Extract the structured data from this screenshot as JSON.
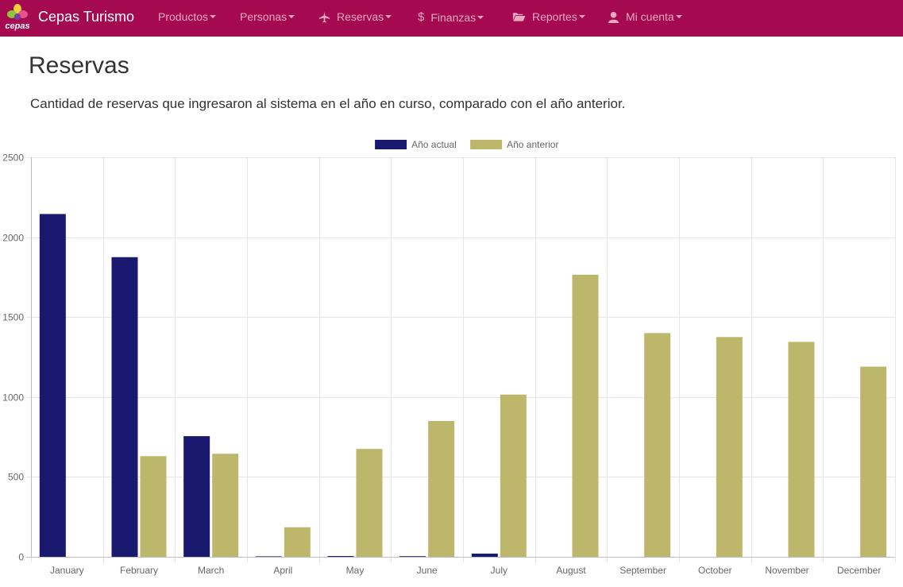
{
  "navbar": {
    "logo_text": "cepas",
    "brand": "Cepas Turismo",
    "items": [
      {
        "label": "Productos",
        "icon": "none"
      },
      {
        "label": "Personas",
        "icon": "none"
      },
      {
        "label": "Reservas",
        "icon": "plane-icon"
      },
      {
        "label": "Finanzas",
        "icon": "dollar-icon"
      },
      {
        "label": "Reportes",
        "icon": "folder-open-icon"
      },
      {
        "label": "Mi cuenta",
        "icon": "user-icon"
      }
    ],
    "colors": {
      "background": "#a50a50",
      "link": "#e7a8c3",
      "brand": "#ffffff"
    }
  },
  "page": {
    "title": "Reservas",
    "description": "Cantidad de reservas que ingresaron al sistema en el año en curso, comparado con el año anterior."
  },
  "chart_data": {
    "type": "bar",
    "categories": [
      "January",
      "February",
      "March",
      "April",
      "May",
      "June",
      "July",
      "August",
      "September",
      "October",
      "November",
      "December"
    ],
    "series": [
      {
        "name": "Año actual",
        "color": "#191970",
        "values": [
          2145,
          1875,
          755,
          3,
          5,
          4,
          20,
          0,
          0,
          0,
          0,
          0
        ]
      },
      {
        "name": "Año anterior",
        "color": "#bdb76b",
        "values": [
          0,
          630,
          645,
          185,
          675,
          850,
          1015,
          1765,
          1400,
          1375,
          1345,
          1190
        ]
      }
    ],
    "yticks": [
      0,
      500,
      1000,
      1500,
      2000,
      2500
    ],
    "ylim": [
      0,
      2500
    ],
    "grid": true,
    "legend_position": "top"
  }
}
